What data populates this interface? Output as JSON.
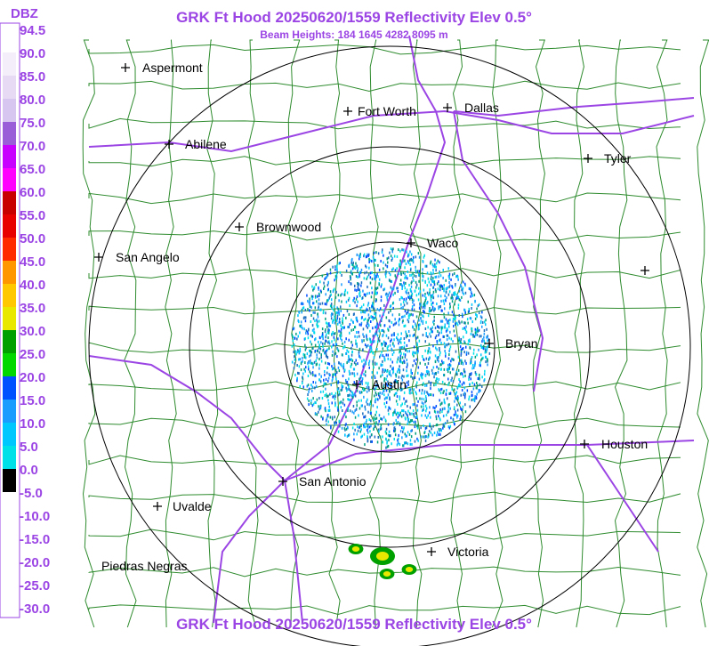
{
  "title": "GRK Ft Hood 20250620/1559 Reflectivity Elev 0.5°",
  "subtitle": "Beam Heights: 184 1645 4282 8095 m",
  "footer": "GRK Ft Hood 20250620/1559 Reflectivity Elev 0.5°",
  "legend": {
    "unit": "DBZ",
    "labels": [
      "94.5",
      "90.0",
      "85.0",
      "80.0",
      "75.0",
      "70.0",
      "65.0",
      "60.0",
      "55.0",
      "50.0",
      "45.0",
      "40.0",
      "35.0",
      "30.0",
      "25.0",
      "20.0",
      "15.0",
      "10.0",
      "5.0",
      "0.0",
      "-5.0",
      "-10.0",
      "-15.0",
      "-20.0",
      "-25.0",
      "-30.0"
    ],
    "colors": [
      "#ffffff",
      "#f4eefa",
      "#e6daf5",
      "#d7c6ef",
      "#9a5fd8",
      "#c800ff",
      "#ff00ff",
      "#c80000",
      "#e80000",
      "#ff2a00",
      "#ff9800",
      "#ffc800",
      "#e8e800",
      "#00a000",
      "#00d800",
      "#0050ff",
      "#1a9cff",
      "#00c8ff",
      "#00e0e8",
      "#000000",
      "#ffffff",
      "#ffffff",
      "#ffffff",
      "#ffffff",
      "#ffffff"
    ]
  },
  "cities": [
    {
      "name": "Aspermont"
    },
    {
      "name": "Fort Worth"
    },
    {
      "name": "Dallas"
    },
    {
      "name": "Abilene"
    },
    {
      "name": "Tyler"
    },
    {
      "name": "Brownwood"
    },
    {
      "name": "Waco"
    },
    {
      "name": "San Angelo"
    },
    {
      "name": "Bryan"
    },
    {
      "name": "Austin"
    },
    {
      "name": "Houston"
    },
    {
      "name": "San Antonio"
    },
    {
      "name": "Uvalde"
    },
    {
      "name": "Victoria"
    },
    {
      "name": "Piedras Negras"
    }
  ]
}
